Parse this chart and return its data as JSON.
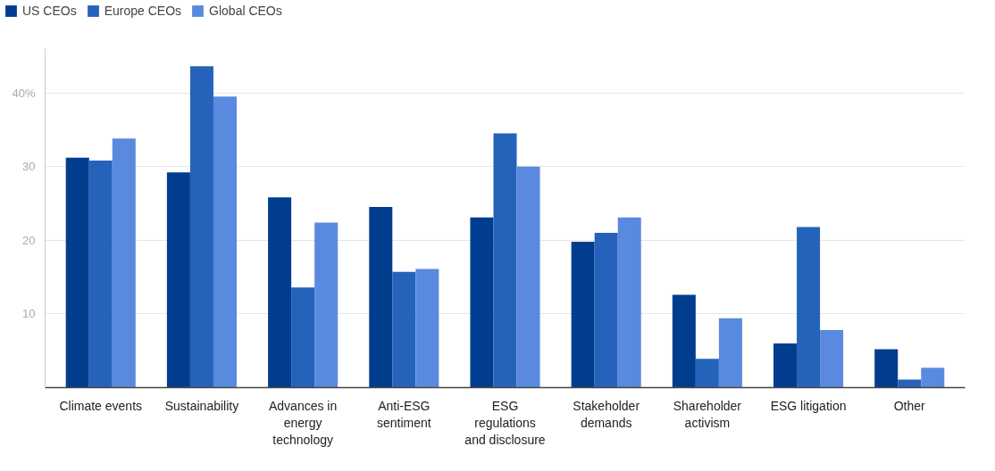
{
  "chart_data": {
    "type": "bar",
    "categories": [
      "Climate events",
      "Sustainability",
      "Advances in energy technology",
      "Anti-ESG sentiment",
      "ESG regulations and disclosure",
      "Stakeholder demands",
      "Shareholder activism",
      "ESG litigation",
      "Other"
    ],
    "series": [
      {
        "name": "US CEOs",
        "color": "#003d8f",
        "values": [
          31.2,
          29.2,
          25.8,
          24.5,
          23.1,
          19.8,
          12.6,
          6.0,
          5.2
        ]
      },
      {
        "name": "Europe CEOs",
        "color": "#2563bb",
        "values": [
          30.8,
          43.6,
          13.6,
          15.7,
          34.5,
          21.0,
          3.9,
          21.8,
          1.1
        ]
      },
      {
        "name": "Global CEOs",
        "color": "#5a8ae0",
        "values": [
          33.8,
          39.5,
          22.4,
          16.1,
          30.0,
          23.1,
          9.4,
          7.8,
          2.7
        ]
      }
    ],
    "ylim": [
      0,
      46
    ],
    "yticks": [
      10,
      20,
      30,
      {
        "value": 40,
        "label": "40%"
      }
    ],
    "grid": "y",
    "legend": "top left"
  }
}
